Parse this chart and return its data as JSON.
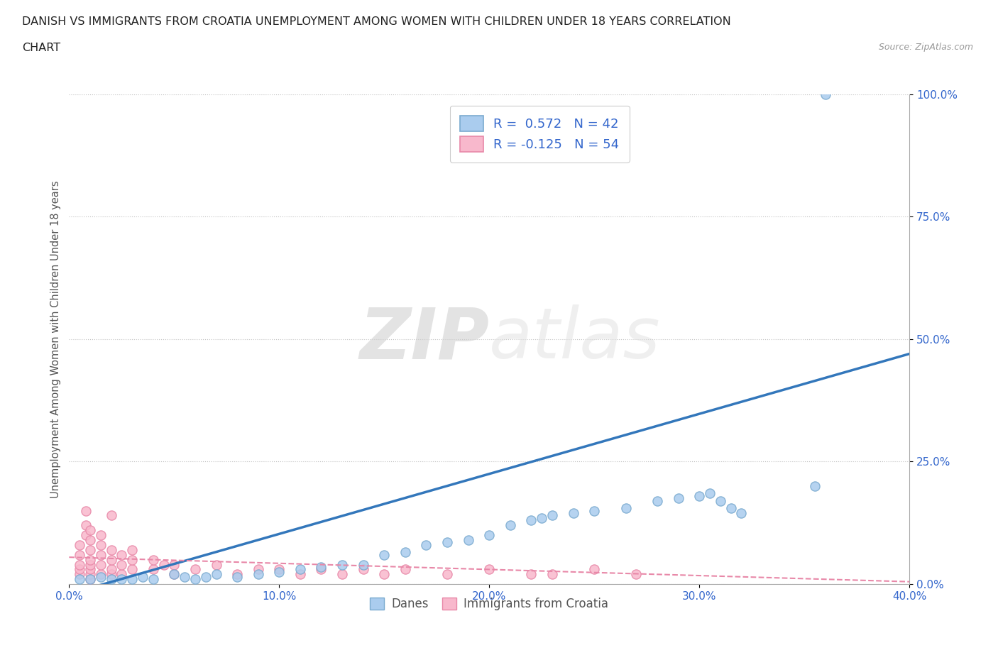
{
  "title_line1": "DANISH VS IMMIGRANTS FROM CROATIA UNEMPLOYMENT AMONG WOMEN WITH CHILDREN UNDER 18 YEARS CORRELATION",
  "title_line2": "CHART",
  "source": "Source: ZipAtlas.com",
  "ylabel": "Unemployment Among Women with Children Under 18 years",
  "xlim": [
    0.0,
    0.4
  ],
  "ylim": [
    0.0,
    1.0
  ],
  "xticks": [
    0.0,
    0.1,
    0.2,
    0.3,
    0.4
  ],
  "xticklabels": [
    "0.0%",
    "10.0%",
    "20.0%",
    "30.0%",
    "40.0%"
  ],
  "yticks": [
    0.0,
    0.25,
    0.5,
    0.75,
    1.0
  ],
  "yticklabels": [
    "0.0%",
    "25.0%",
    "50.0%",
    "75.0%",
    "100.0%"
  ],
  "danes_color": "#aaccee",
  "danes_edge_color": "#7aaacf",
  "croatia_color": "#f8b8cc",
  "croatia_edge_color": "#e888a8",
  "trend_danes_color": "#3377bb",
  "trend_croatia_color": "#e888a8",
  "legend_label_danes": "R =  0.572   N = 42",
  "legend_label_croatia": "R = -0.125   N = 54",
  "legend_label_danes_bottom": "Danes",
  "legend_label_croatia_bottom": "Immigrants from Croatia",
  "watermark_zip": "ZIP",
  "watermark_atlas": "atlas",
  "background_color": "#ffffff",
  "grid_color": "#cccccc",
  "danes_x": [
    0.005,
    0.01,
    0.015,
    0.02,
    0.025,
    0.03,
    0.035,
    0.04,
    0.05,
    0.055,
    0.06,
    0.065,
    0.07,
    0.08,
    0.09,
    0.1,
    0.11,
    0.12,
    0.13,
    0.14,
    0.15,
    0.16,
    0.17,
    0.18,
    0.19,
    0.2,
    0.21,
    0.22,
    0.225,
    0.23,
    0.24,
    0.25,
    0.265,
    0.28,
    0.29,
    0.3,
    0.305,
    0.31,
    0.315,
    0.32,
    0.355,
    0.36
  ],
  "danes_y": [
    0.01,
    0.01,
    0.015,
    0.01,
    0.01,
    0.01,
    0.015,
    0.01,
    0.02,
    0.015,
    0.01,
    0.015,
    0.02,
    0.015,
    0.02,
    0.025,
    0.03,
    0.035,
    0.04,
    0.04,
    0.06,
    0.065,
    0.08,
    0.085,
    0.09,
    0.1,
    0.12,
    0.13,
    0.135,
    0.14,
    0.145,
    0.15,
    0.155,
    0.17,
    0.175,
    0.18,
    0.185,
    0.17,
    0.155,
    0.145,
    0.2,
    1.0
  ],
  "croatia_x": [
    0.005,
    0.005,
    0.005,
    0.005,
    0.005,
    0.008,
    0.008,
    0.008,
    0.01,
    0.01,
    0.01,
    0.01,
    0.01,
    0.01,
    0.01,
    0.01,
    0.015,
    0.015,
    0.015,
    0.015,
    0.015,
    0.02,
    0.02,
    0.02,
    0.02,
    0.02,
    0.025,
    0.025,
    0.025,
    0.03,
    0.03,
    0.03,
    0.04,
    0.04,
    0.045,
    0.05,
    0.05,
    0.06,
    0.07,
    0.08,
    0.09,
    0.1,
    0.11,
    0.12,
    0.13,
    0.14,
    0.15,
    0.16,
    0.18,
    0.2,
    0.22,
    0.23,
    0.25,
    0.27
  ],
  "croatia_y": [
    0.02,
    0.03,
    0.04,
    0.06,
    0.08,
    0.1,
    0.12,
    0.15,
    0.01,
    0.02,
    0.03,
    0.04,
    0.05,
    0.07,
    0.09,
    0.11,
    0.02,
    0.04,
    0.06,
    0.08,
    0.1,
    0.02,
    0.03,
    0.05,
    0.07,
    0.14,
    0.02,
    0.04,
    0.06,
    0.03,
    0.05,
    0.07,
    0.03,
    0.05,
    0.04,
    0.02,
    0.04,
    0.03,
    0.04,
    0.02,
    0.03,
    0.03,
    0.02,
    0.03,
    0.02,
    0.03,
    0.02,
    0.03,
    0.02,
    0.03,
    0.02,
    0.02,
    0.03,
    0.02
  ],
  "trend_danes_x0": 0.0,
  "trend_danes_y0": -0.02,
  "trend_danes_x1": 0.4,
  "trend_danes_y1": 0.47,
  "trend_croatia_x0": 0.0,
  "trend_croatia_y0": 0.055,
  "trend_croatia_x1": 0.4,
  "trend_croatia_y1": 0.005
}
